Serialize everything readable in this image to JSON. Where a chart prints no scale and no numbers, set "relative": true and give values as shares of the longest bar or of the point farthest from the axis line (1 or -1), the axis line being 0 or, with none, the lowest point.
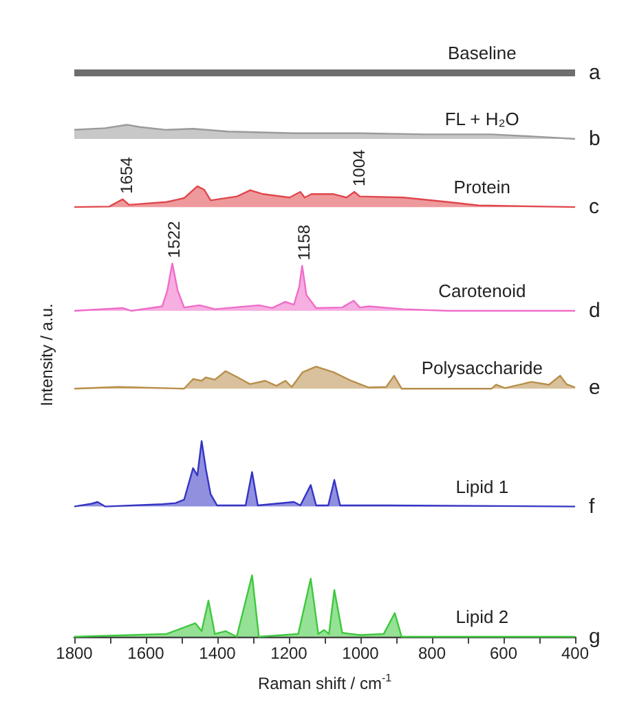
{
  "chart_data": {
    "type": "area",
    "relative": true,
    "xlabel": "Raman shift / cm$^{-1}$",
    "ylabel": "Intensity / a.u.",
    "xlim": [
      1800,
      400
    ],
    "xticks": [
      1800,
      {
        "value": 1700,
        "label": null
      },
      1600,
      {
        "value": 1500,
        "label": null
      },
      1400,
      {
        "value": 1300,
        "label": null
      },
      1200,
      {
        "value": 1100,
        "label": null
      },
      1000,
      {
        "value": 900,
        "label": null
      },
      800,
      {
        "value": 700,
        "label": null
      },
      600,
      {
        "value": 500,
        "label": null
      },
      400
    ],
    "series": [
      {
        "name": "Baseline",
        "type": "line",
        "color": "#6e6e6e",
        "x": [
          1800,
          400
        ],
        "values": [
          1,
          1
        ]
      },
      {
        "name": "FL + H₂O",
        "color": "#9a9a9a",
        "x": [
          1800,
          1714,
          1653,
          1616,
          1542,
          1468,
          1370,
          1186,
          1002,
          818,
          634,
          511,
          400
        ],
        "values": [
          0.899,
          0.902,
          0.908,
          0.904,
          0.899,
          0.901,
          0.896,
          0.893,
          0.893,
          0.891,
          0.891,
          0.887,
          0.883
        ]
      },
      {
        "name": "Protein",
        "color": "#e0474c",
        "x": [
          1800,
          1702,
          1665,
          1647,
          1542,
          1493,
          1456,
          1437,
          1419,
          1345,
          1308,
          1272,
          1198,
          1168,
          1156,
          1137,
          1075,
          1039,
          1017,
          1002,
          879,
          756,
          670,
          400
        ],
        "values": [
          0.762,
          0.763,
          0.776,
          0.766,
          0.771,
          0.778,
          0.799,
          0.793,
          0.774,
          0.781,
          0.792,
          0.785,
          0.779,
          0.789,
          0.779,
          0.785,
          0.785,
          0.779,
          0.789,
          0.781,
          0.779,
          0.771,
          0.765,
          0.762
        ]
      },
      {
        "name": "Carotenoid",
        "color": "#f06cc8",
        "x": [
          1800,
          1665,
          1640,
          1554,
          1540,
          1526,
          1511,
          1493,
          1450,
          1407,
          1284,
          1247,
          1210,
          1186,
          1171,
          1163,
          1151,
          1124,
          1051,
          1019,
          1002,
          977,
          879,
          756,
          400
        ],
        "values": [
          0.578,
          0.583,
          0.578,
          0.586,
          0.614,
          0.662,
          0.614,
          0.584,
          0.588,
          0.581,
          0.588,
          0.583,
          0.594,
          0.589,
          0.621,
          0.658,
          0.606,
          0.583,
          0.584,
          0.596,
          0.584,
          0.586,
          0.581,
          0.578,
          0.578
        ]
      },
      {
        "name": "Polysaccharide",
        "color": "#b88e4a",
        "x": [
          1800,
          1677,
          1493,
          1468,
          1444,
          1432,
          1407,
          1377,
          1346,
          1309,
          1266,
          1235,
          1210,
          1192,
          1162,
          1124,
          1075,
          1026,
          977,
          928,
          906,
          885,
          633,
          621,
          596,
          522,
          473,
          442,
          424,
          400
        ],
        "values": [
          0.44,
          0.443,
          0.44,
          0.457,
          0.454,
          0.46,
          0.456,
          0.471,
          0.461,
          0.448,
          0.454,
          0.445,
          0.454,
          0.443,
          0.469,
          0.479,
          0.469,
          0.454,
          0.442,
          0.443,
          0.463,
          0.44,
          0.44,
          0.447,
          0.441,
          0.452,
          0.447,
          0.463,
          0.448,
          0.442
        ]
      },
      {
        "name": "Lipid 1",
        "color": "#3434c4",
        "x": [
          1800,
          1751,
          1735,
          1714,
          1554,
          1517,
          1493,
          1468,
          1456,
          1444,
          1432,
          1419,
          1401,
          1321,
          1303,
          1287,
          1186,
          1168,
          1139,
          1124,
          1090,
          1073,
          1057,
          928,
          400
        ],
        "values": [
          0.231,
          0.236,
          0.239,
          0.231,
          0.235,
          0.237,
          0.243,
          0.299,
          0.286,
          0.347,
          0.297,
          0.253,
          0.233,
          0.233,
          0.292,
          0.233,
          0.239,
          0.233,
          0.269,
          0.233,
          0.233,
          0.278,
          0.233,
          0.233,
          0.231
        ]
      },
      {
        "name": "Lipid 2",
        "color": "#3ec83e",
        "x": [
          1800,
          1542,
          1462,
          1444,
          1425,
          1407,
          1377,
          1346,
          1303,
          1284,
          1174,
          1139,
          1118,
          1102,
          1088,
          1073,
          1051,
          1002,
          935,
          904,
          885,
          400
        ],
        "values": [
          0,
          0.005,
          0.024,
          0.01,
          0.064,
          0.005,
          0.01,
          0,
          0.109,
          0,
          0.005,
          0.103,
          0.005,
          0.012,
          0.005,
          0.083,
          0.007,
          0.003,
          0.005,
          0.042,
          0,
          0
        ]
      }
    ],
    "annotations": [
      "a",
      "b",
      "c",
      "d",
      "e",
      "f",
      "g",
      {
        "text": "1654",
        "x": 1654,
        "y": 0.776
      },
      {
        "text": "1004",
        "x": 1004,
        "y": 0.789
      },
      {
        "text": "1522",
        "x": 1522,
        "y": 0.662
      },
      {
        "text": "1158",
        "x": 1158,
        "y": 0.658
      }
    ]
  }
}
